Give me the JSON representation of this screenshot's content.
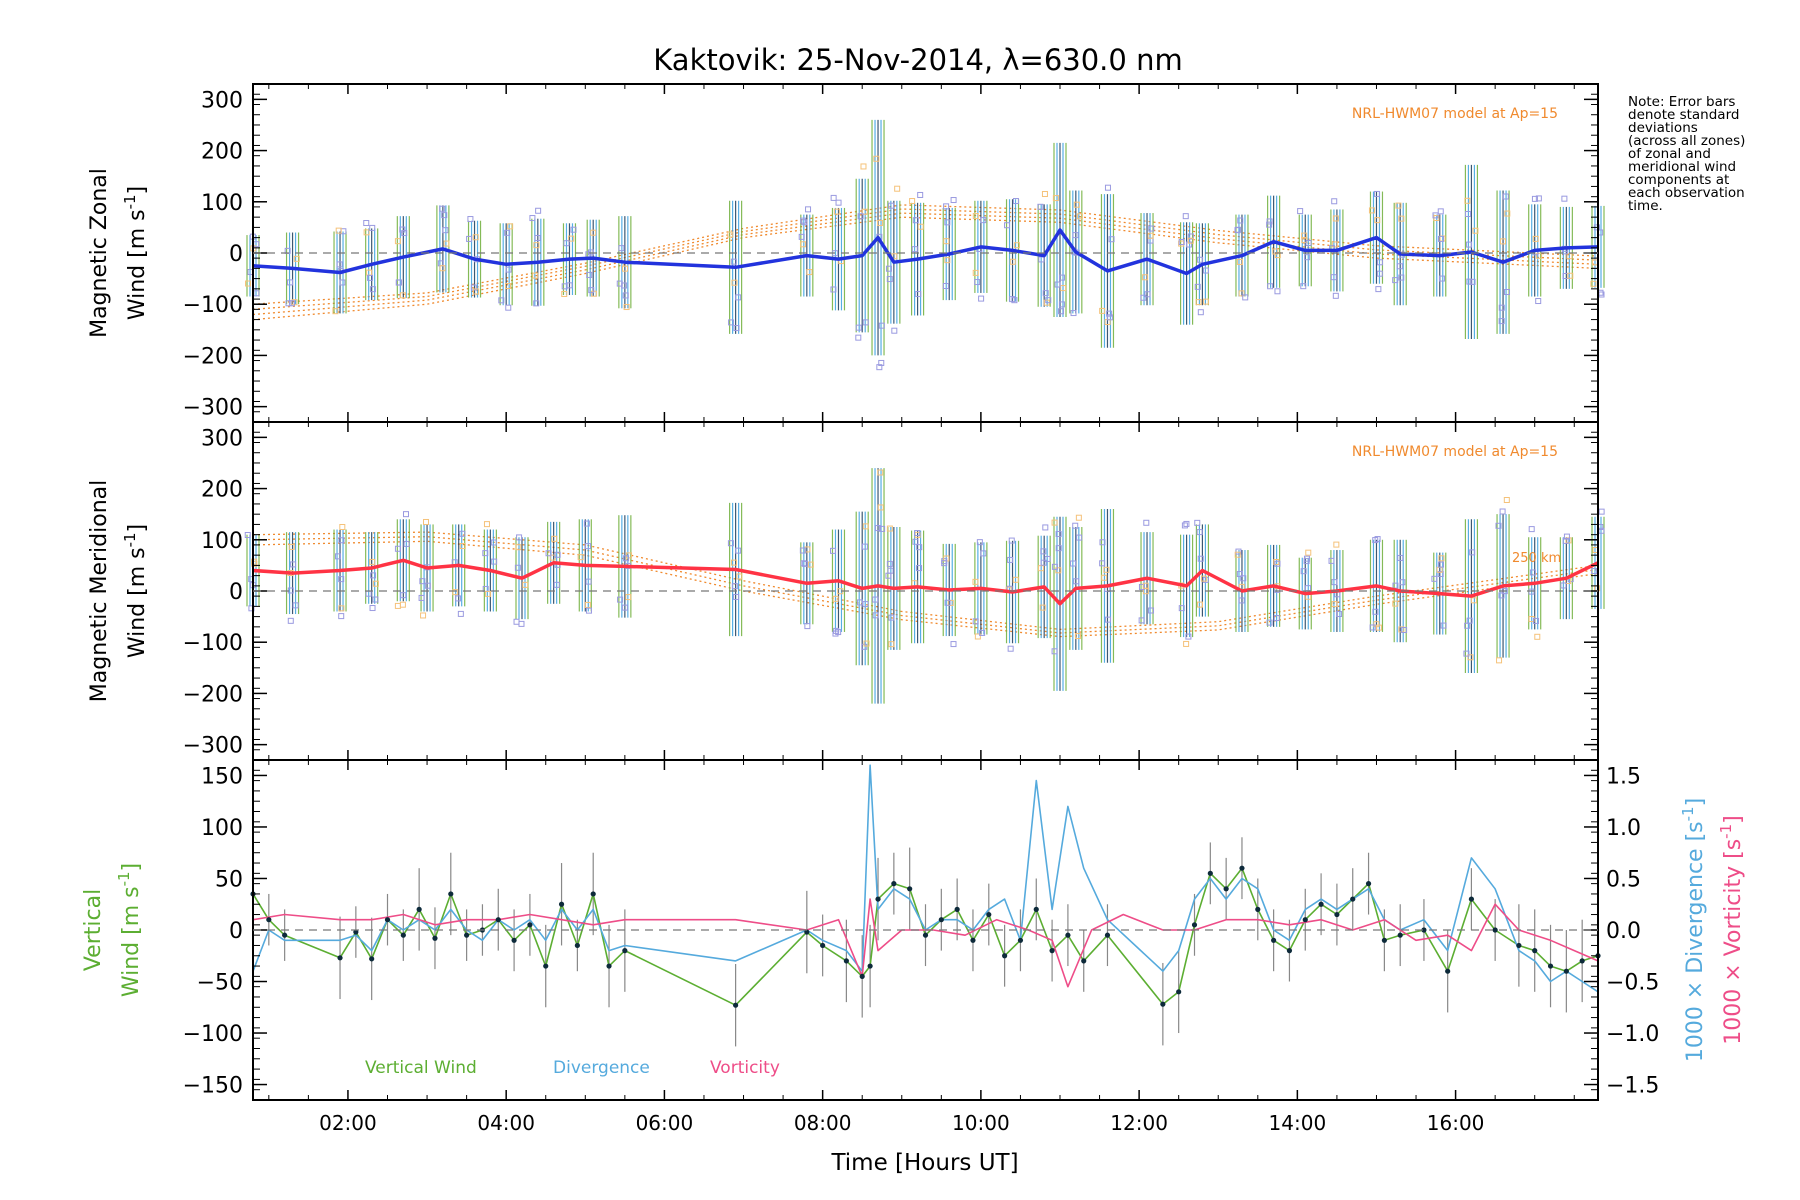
{
  "chart_data": {
    "type": "line",
    "title": "Kaktovik: 25-Nov-2014, λ=630.0 nm",
    "xlabel": "Time [Hours UT]",
    "x_ticks": [
      "02:00",
      "04:00",
      "06:00",
      "08:00",
      "10:00",
      "12:00",
      "14:00",
      "16:00"
    ],
    "xlim_hours": [
      0.8,
      17.8
    ],
    "note": [
      "Note: Error bars",
      "denote standard",
      "deviations",
      "(across all zones)",
      "of zonal and",
      "meridional wind",
      "components at",
      "each observation",
      "time."
    ],
    "panels": [
      {
        "name": "zonal",
        "ylabel_line1": "Magnetic Zonal",
        "ylabel_line2": "Wind [m s",
        "ylabel_sup": "-1",
        "ylabel_close": "]",
        "ylim": [
          -330,
          330
        ],
        "y_ticks": [
          "300",
          "200",
          "100",
          "0",
          "−100",
          "−200",
          "−300"
        ],
        "y_tick_values": [
          300,
          200,
          100,
          0,
          -100,
          -200,
          -300
        ],
        "model_label": "NRL-HWM07 model at Ap=15",
        "mean_color": "#2233dd",
        "sample_color": "#3aa0e0",
        "times": [
          0.8,
          1.3,
          1.9,
          2.3,
          2.7,
          3.2,
          3.6,
          4.0,
          4.4,
          4.8,
          5.1,
          5.5,
          6.9,
          7.8,
          8.2,
          8.5,
          8.7,
          8.9,
          9.2,
          9.6,
          10.0,
          10.4,
          10.8,
          11.0,
          11.2,
          11.6,
          12.1,
          12.6,
          12.8,
          13.3,
          13.7,
          14.1,
          14.5,
          15.0,
          15.3,
          15.8,
          16.2,
          16.6,
          17.0,
          17.4,
          17.8
        ],
        "mean": [
          -25,
          -30,
          -38,
          -22,
          -8,
          8,
          -12,
          -22,
          -18,
          -12,
          -10,
          -18,
          -28,
          -5,
          -12,
          -5,
          30,
          -18,
          -12,
          -2,
          12,
          5,
          -5,
          45,
          2,
          -35,
          -12,
          -40,
          -22,
          -5,
          22,
          5,
          5,
          30,
          -2,
          -5,
          2,
          -18,
          5,
          10,
          12
        ],
        "err": [
          60,
          70,
          80,
          70,
          80,
          85,
          75,
          80,
          85,
          70,
          75,
          90,
          130,
          80,
          100,
          150,
          230,
          120,
          110,
          90,
          90,
          100,
          100,
          170,
          120,
          150,
          90,
          100,
          80,
          80,
          90,
          70,
          80,
          90,
          100,
          80,
          170,
          140,
          90,
          80,
          80
        ],
        "model_curves": [
          {
            "times": [
              0.8,
              3,
              5,
              7,
              9,
              11,
              13,
              15,
              17.8
            ],
            "values": [
              -130,
              -100,
              -40,
              30,
              70,
              60,
              20,
              -10,
              -30
            ]
          },
          {
            "times": [
              0.8,
              3,
              5,
              7,
              9,
              11,
              13,
              15,
              17.8
            ],
            "values": [
              -120,
              -92,
              -33,
              36,
              78,
              68,
              28,
              -2,
              -22
            ]
          },
          {
            "times": [
              0.8,
              3,
              5,
              7,
              9,
              11,
              13,
              15,
              17.8
            ],
            "values": [
              -110,
              -85,
              -26,
              42,
              86,
              76,
              36,
              6,
              -14
            ]
          },
          {
            "times": [
              0.8,
              3,
              5,
              7,
              9,
              11,
              13,
              15,
              17.8
            ],
            "values": [
              -100,
              -78,
              -20,
              48,
              94,
              84,
              44,
              14,
              -6
            ]
          }
        ]
      },
      {
        "name": "meridional",
        "ylabel_line1": "Magnetic Meridional",
        "ylabel_line2": "Wind [m s",
        "ylabel_sup": "-1",
        "ylabel_close": "]",
        "ylim": [
          -330,
          330
        ],
        "y_ticks": [
          "300",
          "200",
          "100",
          "0",
          "−100",
          "−200",
          "−300"
        ],
        "y_tick_values": [
          300,
          200,
          100,
          0,
          -100,
          -200,
          -300
        ],
        "model_label": "NRL-HWM07 model at Ap=15",
        "model_height_label": "250 km",
        "mean_color": "#ff3344",
        "sample_color": "#3aa0e0",
        "times": [
          0.8,
          1.3,
          1.9,
          2.3,
          2.7,
          3.0,
          3.4,
          3.8,
          4.2,
          4.6,
          5.0,
          5.5,
          6.9,
          7.8,
          8.2,
          8.5,
          8.7,
          8.9,
          9.2,
          9.6,
          10.0,
          10.4,
          10.8,
          11.0,
          11.2,
          11.6,
          12.1,
          12.6,
          12.8,
          13.3,
          13.7,
          14.1,
          14.5,
          15.0,
          15.3,
          15.8,
          16.2,
          16.6,
          17.0,
          17.4,
          17.8
        ],
        "mean": [
          40,
          35,
          40,
          45,
          60,
          45,
          50,
          40,
          25,
          55,
          50,
          48,
          42,
          15,
          20,
          5,
          10,
          5,
          8,
          2,
          5,
          -2,
          8,
          -25,
          5,
          10,
          25,
          10,
          40,
          0,
          10,
          -5,
          0,
          10,
          0,
          -5,
          -10,
          10,
          15,
          25,
          55
        ],
        "err": [
          70,
          80,
          80,
          70,
          80,
          85,
          80,
          80,
          80,
          80,
          90,
          100,
          130,
          80,
          100,
          150,
          230,
          120,
          110,
          90,
          90,
          100,
          100,
          170,
          120,
          150,
          90,
          100,
          90,
          80,
          80,
          70,
          80,
          90,
          100,
          80,
          150,
          140,
          90,
          80,
          90
        ],
        "model_curves": [
          {
            "times": [
              0.8,
              3,
              5,
              7,
              9,
              11,
              13,
              15,
              17.8
            ],
            "values": [
              110,
              115,
              90,
              20,
              -40,
              -75,
              -60,
              -10,
              50
            ]
          },
          {
            "times": [
              0.8,
              3,
              5,
              7,
              9,
              11,
              13,
              15,
              17.8
            ],
            "values": [
              100,
              106,
              80,
              10,
              -48,
              -82,
              -68,
              -18,
              42
            ]
          },
          {
            "times": [
              0.8,
              3,
              5,
              7,
              9,
              11,
              13,
              15,
              17.8
            ],
            "values": [
              90,
              97,
              70,
              0,
              -56,
              -89,
              -76,
              -26,
              34
            ]
          }
        ]
      },
      {
        "name": "vertical",
        "ylabel_line1": "Vertical",
        "ylabel_line2": "Wind [m s",
        "ylabel_sup": "-1",
        "ylabel_close": "]",
        "ylim": [
          -165,
          165
        ],
        "y_ticks": [
          "150",
          "100",
          "50",
          "0",
          "−50",
          "−100",
          "−150"
        ],
        "y_tick_values": [
          150,
          100,
          50,
          0,
          -50,
          -100,
          -150
        ],
        "right_axis": {
          "ylim": [
            -1.65,
            1.65
          ],
          "ticks": [
            "1.5",
            "1.0",
            "0.5",
            "0.0",
            "−0.5",
            "−1.0",
            "−1.5"
          ],
          "tick_values": [
            1.5,
            1.0,
            0.5,
            0.0,
            -0.5,
            -1.0,
            -1.5
          ],
          "label_div": "1000 × Divergence [s",
          "label_vor": "1000 × Vorticity [s",
          "label_sup": "-1",
          "label_close": "]"
        },
        "legend": [
          "Vertical Wind",
          "Divergence",
          "Vorticity"
        ],
        "series": [
          {
            "name": "Vertical Wind",
            "color": "#5cae32",
            "times": [
              0.8,
              1.0,
              1.2,
              1.9,
              2.1,
              2.3,
              2.5,
              2.7,
              2.9,
              3.1,
              3.3,
              3.5,
              3.7,
              3.9,
              4.1,
              4.3,
              4.5,
              4.7,
              4.9,
              5.1,
              5.3,
              5.5,
              6.9,
              7.8,
              8.0,
              8.3,
              8.5,
              8.6,
              8.7,
              8.9,
              9.1,
              9.3,
              9.5,
              9.7,
              9.9,
              10.1,
              10.3,
              10.5,
              10.7,
              10.9,
              11.1,
              11.3,
              11.6,
              12.3,
              12.5,
              12.7,
              12.9,
              13.1,
              13.3,
              13.5,
              13.7,
              13.9,
              14.1,
              14.3,
              14.5,
              14.7,
              14.9,
              15.1,
              15.3,
              15.6,
              15.9,
              16.2,
              16.5,
              16.8,
              17.0,
              17.2,
              17.4,
              17.6,
              17.8
            ],
            "values": [
              35,
              10,
              -5,
              -27,
              -2,
              -28,
              10,
              -5,
              20,
              -8,
              35,
              -5,
              0,
              10,
              -10,
              5,
              -35,
              25,
              -15,
              35,
              -35,
              -20,
              -73,
              -2,
              -15,
              -30,
              -45,
              -35,
              30,
              45,
              40,
              -5,
              10,
              20,
              -10,
              15,
              -25,
              -10,
              20,
              -20,
              -5,
              -30,
              -5,
              -72,
              -60,
              5,
              55,
              40,
              60,
              20,
              -10,
              -20,
              10,
              25,
              15,
              30,
              45,
              -10,
              -5,
              0,
              -40,
              30,
              0,
              -15,
              -20,
              -35,
              -40,
              -30,
              -25
            ],
            "err": [
              25,
              25,
              25,
              40,
              25,
              40,
              25,
              25,
              40,
              30,
              40,
              25,
              25,
              30,
              30,
              30,
              40,
              40,
              25,
              40,
              40,
              40,
              40,
              40,
              30,
              40,
              40,
              40,
              40,
              30,
              40,
              30,
              30,
              30,
              30,
              30,
              30,
              30,
              30,
              30,
              30,
              30,
              30,
              40,
              40,
              30,
              30,
              30,
              30,
              30,
              30,
              30,
              30,
              30,
              30,
              30,
              30,
              30,
              30,
              30,
              40,
              30,
              30,
              40,
              40,
              40,
              40,
              40,
              40
            ]
          },
          {
            "name": "Divergence",
            "color": "#55aadd",
            "axis": "right",
            "times": [
              0.8,
              1.0,
              1.2,
              1.9,
              2.1,
              2.3,
              2.5,
              2.7,
              2.9,
              3.1,
              3.3,
              3.5,
              3.7,
              3.9,
              4.1,
              4.3,
              4.5,
              4.7,
              4.9,
              5.1,
              5.3,
              5.5,
              6.9,
              7.8,
              8.0,
              8.3,
              8.5,
              8.6,
              8.7,
              8.9,
              9.1,
              9.3,
              9.5,
              9.7,
              9.9,
              10.1,
              10.3,
              10.5,
              10.7,
              10.9,
              11.1,
              11.3,
              11.6,
              12.3,
              12.5,
              12.7,
              12.9,
              13.1,
              13.3,
              13.5,
              13.7,
              13.9,
              14.1,
              14.3,
              14.5,
              14.7,
              14.9,
              15.1,
              15.3,
              15.6,
              15.9,
              16.2,
              16.5,
              16.8,
              17.0,
              17.2,
              17.4,
              17.6,
              17.8
            ],
            "values": [
              -0.4,
              0.0,
              -0.1,
              -0.1,
              -0.05,
              -0.2,
              0.1,
              0.0,
              0.1,
              0.0,
              0.2,
              0.0,
              -0.1,
              0.1,
              0.0,
              0.1,
              -0.1,
              0.2,
              0.0,
              0.2,
              -0.2,
              -0.15,
              -0.3,
              0.0,
              -0.1,
              -0.2,
              -0.4,
              1.6,
              0.2,
              0.4,
              0.3,
              0.0,
              0.1,
              0.1,
              0.0,
              0.2,
              0.3,
              -0.1,
              1.45,
              0.2,
              1.2,
              0.6,
              0.1,
              -0.4,
              -0.2,
              0.3,
              0.5,
              0.3,
              0.5,
              0.4,
              0.0,
              -0.1,
              0.2,
              0.3,
              0.2,
              0.3,
              0.4,
              0.1,
              0.0,
              0.1,
              -0.2,
              0.7,
              0.4,
              -0.2,
              -0.3,
              -0.5,
              -0.4,
              -0.5,
              -0.6
            ]
          },
          {
            "name": "Vorticity",
            "color": "#ee4d88",
            "axis": "right",
            "times": [
              0.8,
              1.2,
              1.9,
              2.3,
              2.7,
              3.1,
              3.5,
              3.9,
              4.3,
              4.7,
              5.1,
              5.5,
              6.9,
              7.8,
              8.2,
              8.5,
              8.6,
              8.7,
              9.0,
              9.4,
              9.8,
              10.2,
              10.6,
              10.9,
              11.1,
              11.4,
              11.8,
              12.3,
              12.7,
              13.1,
              13.5,
              13.9,
              14.3,
              14.7,
              15.1,
              15.5,
              15.9,
              16.2,
              16.5,
              16.8,
              17.2,
              17.5,
              17.8
            ],
            "values": [
              0.1,
              0.15,
              0.1,
              0.1,
              0.15,
              0.05,
              0.1,
              0.1,
              0.15,
              0.1,
              0.05,
              0.1,
              0.1,
              0.0,
              0.1,
              -0.45,
              0.3,
              -0.2,
              0.0,
              0.0,
              -0.05,
              0.1,
              0.0,
              -0.1,
              -0.55,
              0.0,
              0.15,
              0.0,
              0.0,
              0.1,
              0.1,
              0.05,
              0.1,
              0.0,
              0.1,
              -0.1,
              -0.05,
              -0.2,
              0.25,
              0.0,
              -0.1,
              -0.2,
              -0.3
            ]
          }
        ]
      }
    ]
  }
}
